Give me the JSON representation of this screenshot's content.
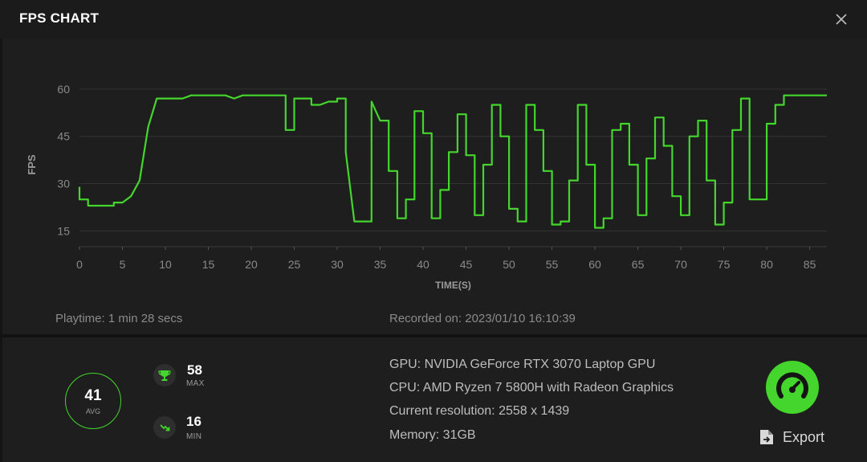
{
  "window": {
    "title": "FPS CHART"
  },
  "icons": {
    "close": "close-icon",
    "trophy": "trophy-icon",
    "trend_down": "trend-down-icon",
    "gauge": "speedometer-icon",
    "export": "export-file-icon"
  },
  "colors": {
    "accent": "#44d62c",
    "background": "#1e1e1e"
  },
  "chart_data": {
    "type": "line",
    "title": "",
    "xlabel": "TIME(S)",
    "ylabel": "FPS",
    "xlim": [
      0,
      87
    ],
    "ylim": [
      10,
      62
    ],
    "xticks": [
      "0",
      "5",
      "10",
      "15",
      "20",
      "25",
      "30",
      "35",
      "40",
      "45",
      "50",
      "55",
      "60",
      "65",
      "70",
      "75",
      "80",
      "85"
    ],
    "yticks": [
      "15",
      "30",
      "45",
      "60"
    ],
    "grid": true,
    "series": [
      {
        "color": "#44d62c",
        "points": [
          [
            0,
            29
          ],
          [
            0,
            25
          ],
          [
            1,
            25
          ],
          [
            1,
            23
          ],
          [
            4,
            23
          ],
          [
            4,
            24
          ],
          [
            5,
            24
          ],
          [
            6,
            26
          ],
          [
            7,
            31
          ],
          [
            8,
            48
          ],
          [
            9,
            57
          ],
          [
            12,
            57
          ],
          [
            13,
            58
          ],
          [
            17,
            58
          ],
          [
            18,
            57
          ],
          [
            19,
            58
          ],
          [
            24,
            58
          ],
          [
            24,
            47
          ],
          [
            25,
            47
          ],
          [
            25,
            57
          ],
          [
            27,
            57
          ],
          [
            27,
            55
          ],
          [
            28,
            55
          ],
          [
            29,
            56
          ],
          [
            30,
            56
          ],
          [
            30,
            57
          ],
          [
            31,
            57
          ],
          [
            31,
            40
          ],
          [
            32,
            18
          ],
          [
            34,
            18
          ],
          [
            34,
            56
          ],
          [
            35,
            50
          ],
          [
            36,
            50
          ],
          [
            36,
            34
          ],
          [
            37,
            34
          ],
          [
            37,
            19
          ],
          [
            38,
            19
          ],
          [
            38,
            25
          ],
          [
            39,
            25
          ],
          [
            39,
            53
          ],
          [
            40,
            53
          ],
          [
            40,
            46
          ],
          [
            41,
            46
          ],
          [
            41,
            19
          ],
          [
            42,
            19
          ],
          [
            42,
            28
          ],
          [
            43,
            28
          ],
          [
            43,
            40
          ],
          [
            44,
            40
          ],
          [
            44,
            52
          ],
          [
            45,
            52
          ],
          [
            45,
            39
          ],
          [
            46,
            39
          ],
          [
            46,
            20
          ],
          [
            47,
            20
          ],
          [
            47,
            36
          ],
          [
            48,
            36
          ],
          [
            48,
            55
          ],
          [
            49,
            55
          ],
          [
            49,
            45
          ],
          [
            50,
            45
          ],
          [
            50,
            22
          ],
          [
            51,
            22
          ],
          [
            51,
            18
          ],
          [
            52,
            18
          ],
          [
            52,
            55
          ],
          [
            53,
            55
          ],
          [
            53,
            47
          ],
          [
            54,
            47
          ],
          [
            54,
            34
          ],
          [
            55,
            34
          ],
          [
            55,
            17
          ],
          [
            56,
            17
          ],
          [
            56,
            18
          ],
          [
            57,
            18
          ],
          [
            57,
            31
          ],
          [
            58,
            31
          ],
          [
            58,
            55
          ],
          [
            59,
            55
          ],
          [
            59,
            36
          ],
          [
            60,
            36
          ],
          [
            60,
            16
          ],
          [
            61,
            16
          ],
          [
            61,
            19
          ],
          [
            62,
            19
          ],
          [
            62,
            47
          ],
          [
            63,
            47
          ],
          [
            63,
            49
          ],
          [
            64,
            49
          ],
          [
            64,
            36
          ],
          [
            65,
            36
          ],
          [
            65,
            20
          ],
          [
            66,
            20
          ],
          [
            66,
            38
          ],
          [
            67,
            38
          ],
          [
            67,
            51
          ],
          [
            68,
            51
          ],
          [
            68,
            42
          ],
          [
            69,
            42
          ],
          [
            69,
            26
          ],
          [
            70,
            26
          ],
          [
            70,
            20
          ],
          [
            71,
            20
          ],
          [
            71,
            45
          ],
          [
            72,
            45
          ],
          [
            72,
            50
          ],
          [
            73,
            50
          ],
          [
            73,
            31
          ],
          [
            74,
            31
          ],
          [
            74,
            17
          ],
          [
            75,
            17
          ],
          [
            75,
            24
          ],
          [
            76,
            24
          ],
          [
            76,
            47
          ],
          [
            77,
            47
          ],
          [
            77,
            57
          ],
          [
            78,
            57
          ],
          [
            78,
            25
          ],
          [
            80,
            25
          ],
          [
            80,
            49
          ],
          [
            81,
            49
          ],
          [
            81,
            55
          ],
          [
            82,
            55
          ],
          [
            82,
            58
          ],
          [
            87,
            58
          ]
        ]
      }
    ]
  },
  "footer": {
    "playtime": "Playtime: 1 min 28 secs",
    "recorded": "Recorded on: 2023/01/10 16:10:39"
  },
  "stats": {
    "avg": {
      "value": "41",
      "label": "AVG"
    },
    "max": {
      "value": "58",
      "label": "MAX"
    },
    "min": {
      "value": "16",
      "label": "MIN"
    }
  },
  "system": {
    "gpu": "GPU: NVIDIA GeForce RTX 3070 Laptop GPU",
    "cpu": "CPU: AMD Ryzen 7 5800H with Radeon Graphics",
    "resolution": "Current resolution: 2558 x 1439",
    "memory": "Memory: 31GB"
  },
  "actions": {
    "export_label": "Export"
  }
}
